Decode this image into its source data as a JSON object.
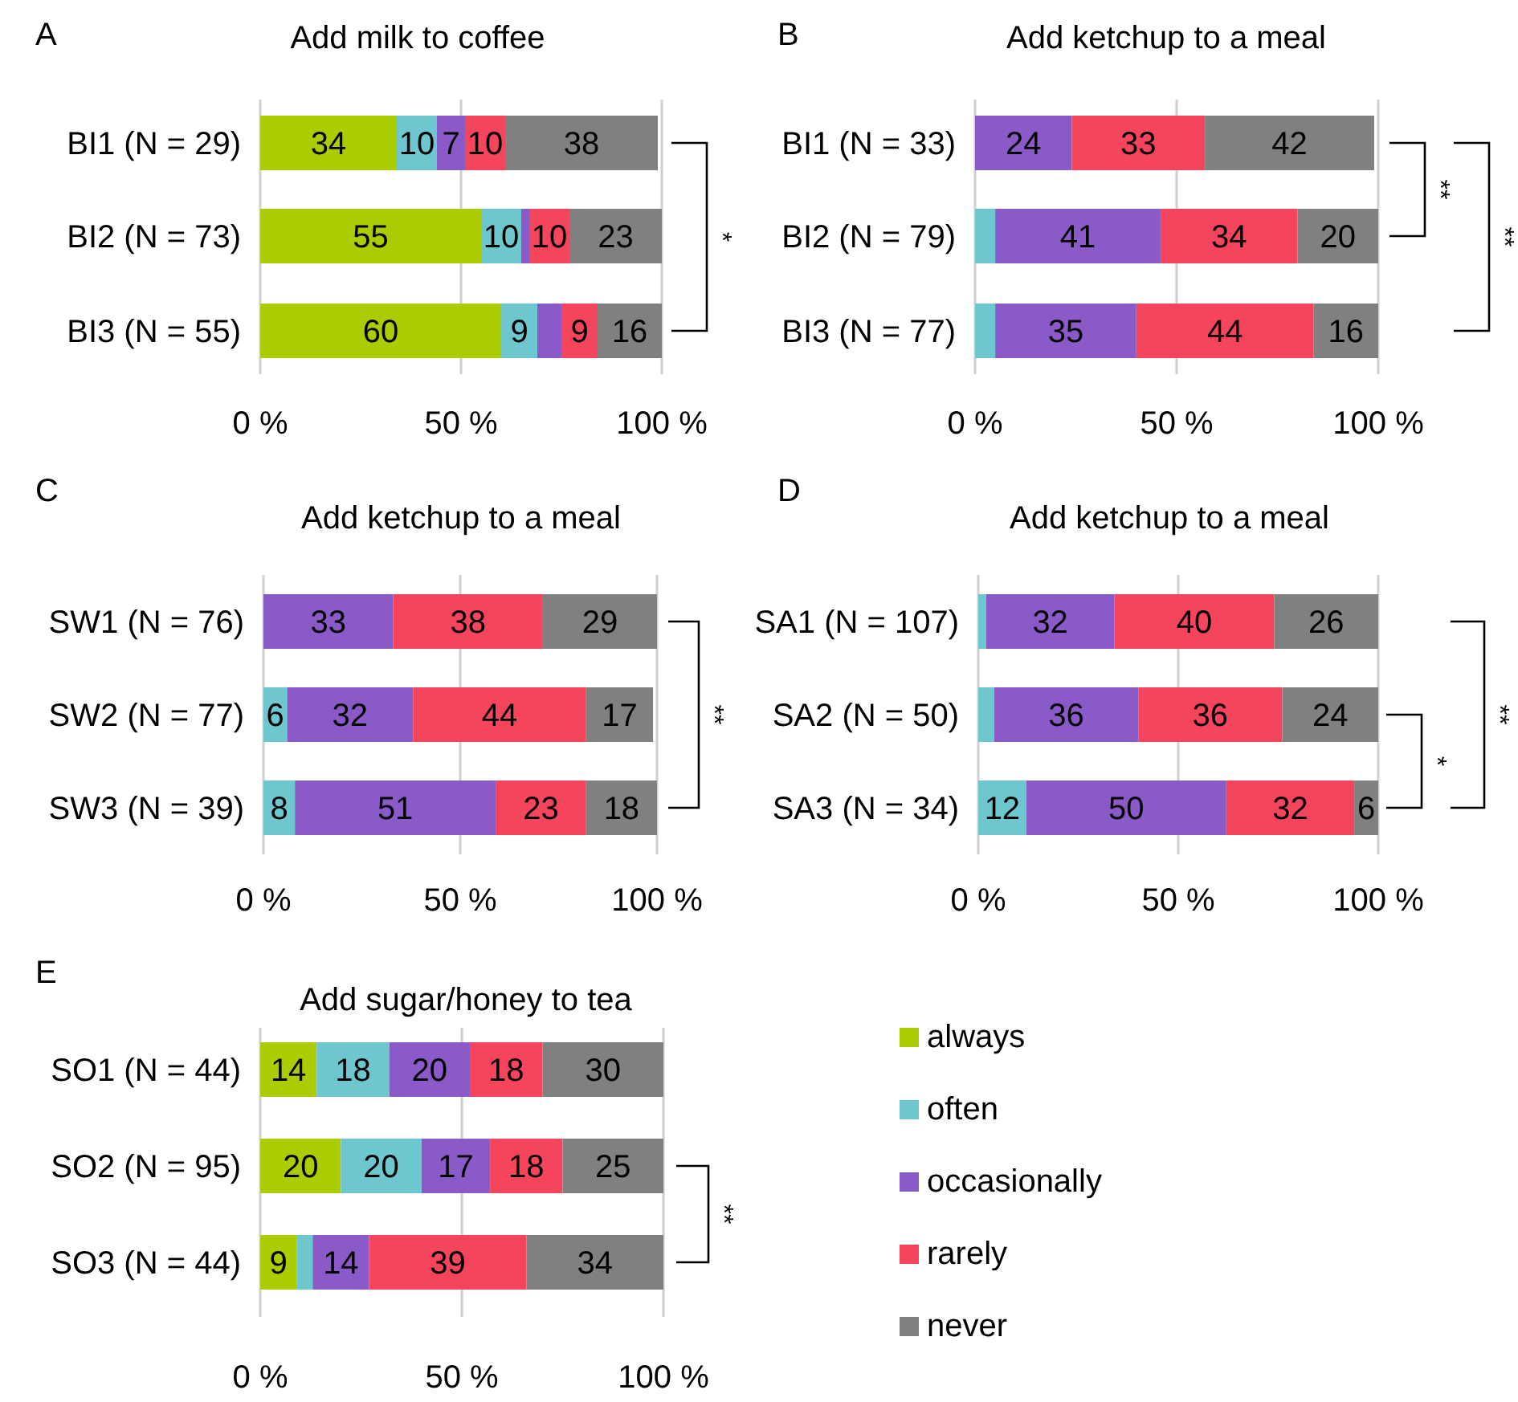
{
  "chart_data": [
    {
      "type": "bar",
      "orientation": "horizontal",
      "stacked": true,
      "title": "Add milk to coffee",
      "categories": [
        "BI1 (N = 29)",
        "BI2 (N = 73)",
        "BI3 (N = 55)"
      ],
      "xlim": [
        0,
        100
      ],
      "xticks": [
        {
          "value": 0,
          "label": "0 %"
        },
        {
          "value": 50,
          "label": "50 %"
        },
        {
          "value": 100,
          "label": "100 %"
        }
      ],
      "grid": "x",
      "legend": false,
      "annotations": [
        "A",
        "*"
      ],
      "series": [
        {
          "color": "#aacc00",
          "values": [
            34,
            55,
            60
          ],
          "value_labels": [
            "34",
            "55",
            "60"
          ]
        },
        {
          "color": "#6ec6cf",
          "values": [
            10,
            10,
            9
          ],
          "value_labels": [
            "10",
            "10",
            "9"
          ]
        },
        {
          "color": "#8a5ac8",
          "values": [
            7,
            2,
            6
          ],
          "value_labels": [
            "7",
            null,
            null
          ]
        },
        {
          "color": "#f5455c",
          "values": [
            10,
            10,
            9
          ],
          "value_labels": [
            "10",
            "10",
            "9"
          ]
        },
        {
          "color": "#808080",
          "values": [
            38,
            23,
            16
          ],
          "value_labels": [
            "38",
            "23",
            "16"
          ]
        }
      ]
    },
    {
      "type": "bar",
      "orientation": "horizontal",
      "stacked": true,
      "title": "Add ketchup to a meal",
      "categories": [
        "BI1 (N = 33)",
        "BI2 (N = 79)",
        "BI3 (N = 77)"
      ],
      "xlim": [
        0,
        100
      ],
      "xticks": [
        {
          "value": 0,
          "label": "0 %"
        },
        {
          "value": 50,
          "label": "50 %"
        },
        {
          "value": 100,
          "label": "100 %"
        }
      ],
      "grid": "x",
      "legend": false,
      "annotations": [
        "B",
        "**",
        "**"
      ],
      "series": [
        {
          "color": "#6ec6cf",
          "values": [
            0,
            5,
            5
          ],
          "value_labels": [
            null,
            null,
            null
          ]
        },
        {
          "color": "#8a5ac8",
          "values": [
            24,
            41,
            35
          ],
          "value_labels": [
            "24",
            "41",
            "35"
          ]
        },
        {
          "color": "#f5455c",
          "values": [
            33,
            34,
            44
          ],
          "value_labels": [
            "33",
            "34",
            "44"
          ]
        },
        {
          "color": "#808080",
          "values": [
            42,
            20,
            16
          ],
          "value_labels": [
            "42",
            "20",
            "16"
          ]
        }
      ]
    },
    {
      "type": "bar",
      "orientation": "horizontal",
      "stacked": true,
      "title": "Add ketchup to a meal",
      "categories": [
        "SW1 (N = 76)",
        "SW2 (N = 77)",
        "SW3 (N = 39)"
      ],
      "xlim": [
        0,
        100
      ],
      "xticks": [
        {
          "value": 0,
          "label": "0 %"
        },
        {
          "value": 50,
          "label": "50 %"
        },
        {
          "value": 100,
          "label": "100 %"
        }
      ],
      "grid": "x",
      "legend": false,
      "annotations": [
        "C",
        "**"
      ],
      "series": [
        {
          "color": "#6ec6cf",
          "values": [
            0,
            6,
            8
          ],
          "value_labels": [
            null,
            "6",
            "8"
          ]
        },
        {
          "color": "#8a5ac8",
          "values": [
            33,
            32,
            51
          ],
          "value_labels": [
            "33",
            "32",
            "51"
          ]
        },
        {
          "color": "#f5455c",
          "values": [
            38,
            44,
            23
          ],
          "value_labels": [
            "38",
            "44",
            "23"
          ]
        },
        {
          "color": "#808080",
          "values": [
            29,
            17,
            18
          ],
          "value_labels": [
            "29",
            "17",
            "18"
          ]
        }
      ]
    },
    {
      "type": "bar",
      "orientation": "horizontal",
      "stacked": true,
      "title": "Add ketchup to a meal",
      "categories": [
        "SA1 (N = 107)",
        "SA2 (N = 50)",
        "SA3 (N = 34)"
      ],
      "xlim": [
        0,
        100
      ],
      "xticks": [
        {
          "value": 0,
          "label": "0 %"
        },
        {
          "value": 50,
          "label": "50 %"
        },
        {
          "value": 100,
          "label": "100 %"
        }
      ],
      "grid": "x",
      "legend": false,
      "annotations": [
        "D",
        "*",
        "**"
      ],
      "series": [
        {
          "color": "#6ec6cf",
          "values": [
            2,
            4,
            12
          ],
          "value_labels": [
            null,
            null,
            "12"
          ]
        },
        {
          "color": "#8a5ac8",
          "values": [
            32,
            36,
            50
          ],
          "value_labels": [
            "32",
            "36",
            "50"
          ]
        },
        {
          "color": "#f5455c",
          "values": [
            40,
            36,
            32
          ],
          "value_labels": [
            "40",
            "36",
            "32"
          ]
        },
        {
          "color": "#808080",
          "values": [
            26,
            24,
            6
          ],
          "value_labels": [
            "26",
            "24",
            "6"
          ]
        }
      ]
    },
    {
      "type": "bar",
      "orientation": "horizontal",
      "stacked": true,
      "title": "Add sugar/honey to tea",
      "categories": [
        "SO1 (N = 44)",
        "SO2 (N = 95)",
        "SO3 (N = 44)"
      ],
      "xlim": [
        0,
        100
      ],
      "xticks": [
        {
          "value": 0,
          "label": "0 %"
        },
        {
          "value": 50,
          "label": "50 %"
        },
        {
          "value": 100,
          "label": "100 %"
        }
      ],
      "grid": "x",
      "legend": "right",
      "annotations": [
        "E",
        "**"
      ],
      "series": [
        {
          "name": "always",
          "color": "#aacc00",
          "values": [
            14,
            20,
            9
          ],
          "value_labels": [
            "14",
            "20",
            "9"
          ]
        },
        {
          "name": "often",
          "color": "#6ec6cf",
          "values": [
            18,
            20,
            4
          ],
          "value_labels": [
            "18",
            "20",
            null
          ]
        },
        {
          "name": "occasionally",
          "color": "#8a5ac8",
          "values": [
            20,
            17,
            14
          ],
          "value_labels": [
            "20",
            "17",
            "14"
          ]
        },
        {
          "name": "rarely",
          "color": "#f5455c",
          "values": [
            18,
            18,
            39
          ],
          "value_labels": [
            "18",
            "18",
            "39"
          ]
        },
        {
          "name": "never",
          "color": "#808080",
          "values": [
            30,
            25,
            34
          ],
          "value_labels": [
            "30",
            "25",
            "34"
          ]
        }
      ]
    }
  ]
}
